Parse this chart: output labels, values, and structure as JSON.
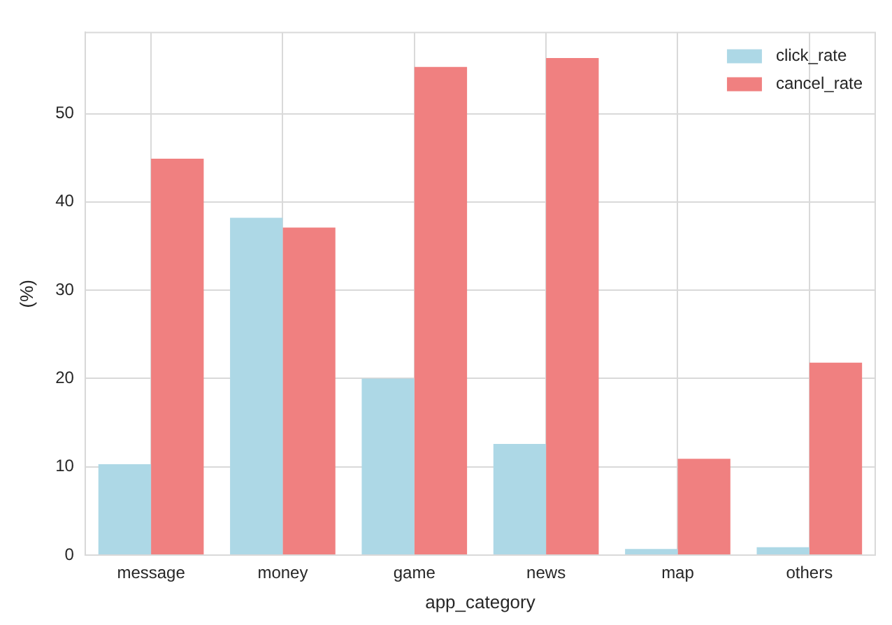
{
  "chart_data": {
    "type": "bar",
    "xlabel": "app_category",
    "ylabel": "(%)",
    "categories": [
      "message",
      "money",
      "game",
      "news",
      "map",
      "others"
    ],
    "series": [
      {
        "name": "click_rate",
        "color": "#add8e6",
        "values": [
          10.3,
          38.2,
          20.0,
          12.6,
          0.7,
          0.9
        ]
      },
      {
        "name": "cancel_rate",
        "color": "#f08080",
        "values": [
          44.9,
          37.1,
          55.3,
          56.3,
          10.9,
          21.8
        ]
      }
    ],
    "ylim": [
      0,
      59.2
    ],
    "yticks": [
      0,
      10,
      20,
      30,
      40,
      50
    ],
    "grid": true,
    "legend": "top right"
  }
}
